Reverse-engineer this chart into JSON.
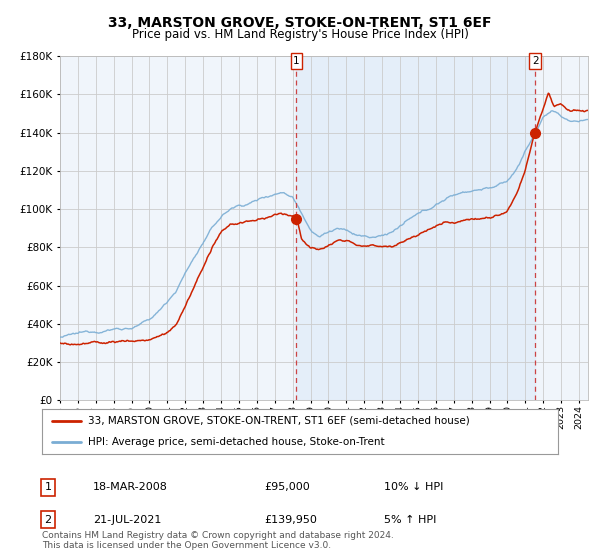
{
  "title": "33, MARSTON GROVE, STOKE-ON-TRENT, ST1 6EF",
  "subtitle": "Price paid vs. HM Land Registry's House Price Index (HPI)",
  "legend_line1": "33, MARSTON GROVE, STOKE-ON-TRENT, ST1 6EF (semi-detached house)",
  "legend_line2": "HPI: Average price, semi-detached house, Stoke-on-Trent",
  "annotation1_date": "18-MAR-2008",
  "annotation1_price": "£95,000",
  "annotation1_hpi": "10% ↓ HPI",
  "annotation2_date": "21-JUL-2021",
  "annotation2_price": "£139,950",
  "annotation2_hpi": "5% ↑ HPI",
  "footer": "Contains HM Land Registry data © Crown copyright and database right 2024.\nThis data is licensed under the Open Government Licence v3.0.",
  "hpi_color": "#7aadd4",
  "price_color": "#cc2200",
  "dot_color": "#cc2200",
  "plot_bg": "#f0f5fb",
  "grid_color": "#cccccc",
  "vline_color": "#cc4444",
  "sale1_x": 2008.21,
  "sale1_y": 95000,
  "sale2_x": 2021.55,
  "sale2_y": 139950,
  "xmin": 1995,
  "xmax": 2024.5,
  "ymin": 0,
  "ymax": 180000,
  "yticks": [
    0,
    20000,
    40000,
    60000,
    80000,
    100000,
    120000,
    140000,
    160000,
    180000
  ]
}
